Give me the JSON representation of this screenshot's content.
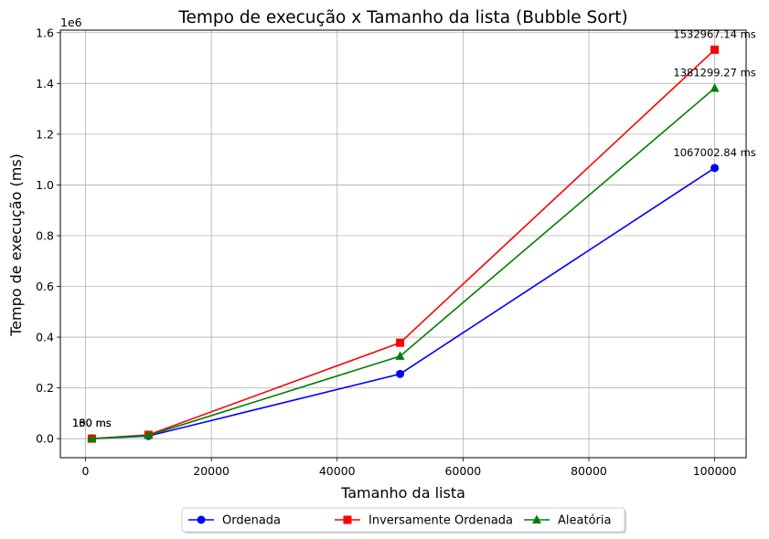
{
  "chart_data": {
    "type": "line",
    "title": "Tempo de execução x Tamanho da lista (Bubble Sort)",
    "xlabel": "Tamanho da lista",
    "ylabel": "Tempo de execução (ms)",
    "y_offset_label": "1e6",
    "x": [
      1000,
      10000,
      50000,
      100000
    ],
    "xlim": [
      -4000,
      105000
    ],
    "ylim": [
      -75000,
      1610000
    ],
    "x_ticks": [
      0,
      20000,
      40000,
      60000,
      80000,
      100000
    ],
    "x_tick_labels": [
      "0",
      "20000",
      "40000",
      "60000",
      "80000",
      "100000"
    ],
    "y_ticks": [
      0,
      200000,
      400000,
      600000,
      800000,
      1000000,
      1200000,
      1400000,
      1600000
    ],
    "y_tick_labels": [
      "0.0",
      "0.2",
      "0.4",
      "0.6",
      "0.8",
      "1.0",
      "1.2",
      "1.4",
      "1.6"
    ],
    "grid": true,
    "legend_position": "bottom-center-outside",
    "series": [
      {
        "name": "Ordenada",
        "color": "#0000ff",
        "marker": "circle",
        "values": [
          100,
          10500,
          255000,
          1067002.84
        ],
        "labels": [
          "100 ms",
          "",
          "",
          "1067002.84 ms"
        ]
      },
      {
        "name": "Inversamente Ordenada",
        "color": "#ff0000",
        "marker": "square",
        "values": [
          160,
          15000,
          378000,
          1532967.14
        ],
        "labels": [
          "160 ms",
          "",
          "",
          "1532967.14 ms"
        ]
      },
      {
        "name": "Aleatória",
        "color": "#008000",
        "marker": "triangle",
        "values": [
          130,
          13000,
          325000,
          1381299.27
        ],
        "labels": [
          "130 ms",
          "",
          "",
          "1381299.27 ms"
        ]
      }
    ]
  }
}
